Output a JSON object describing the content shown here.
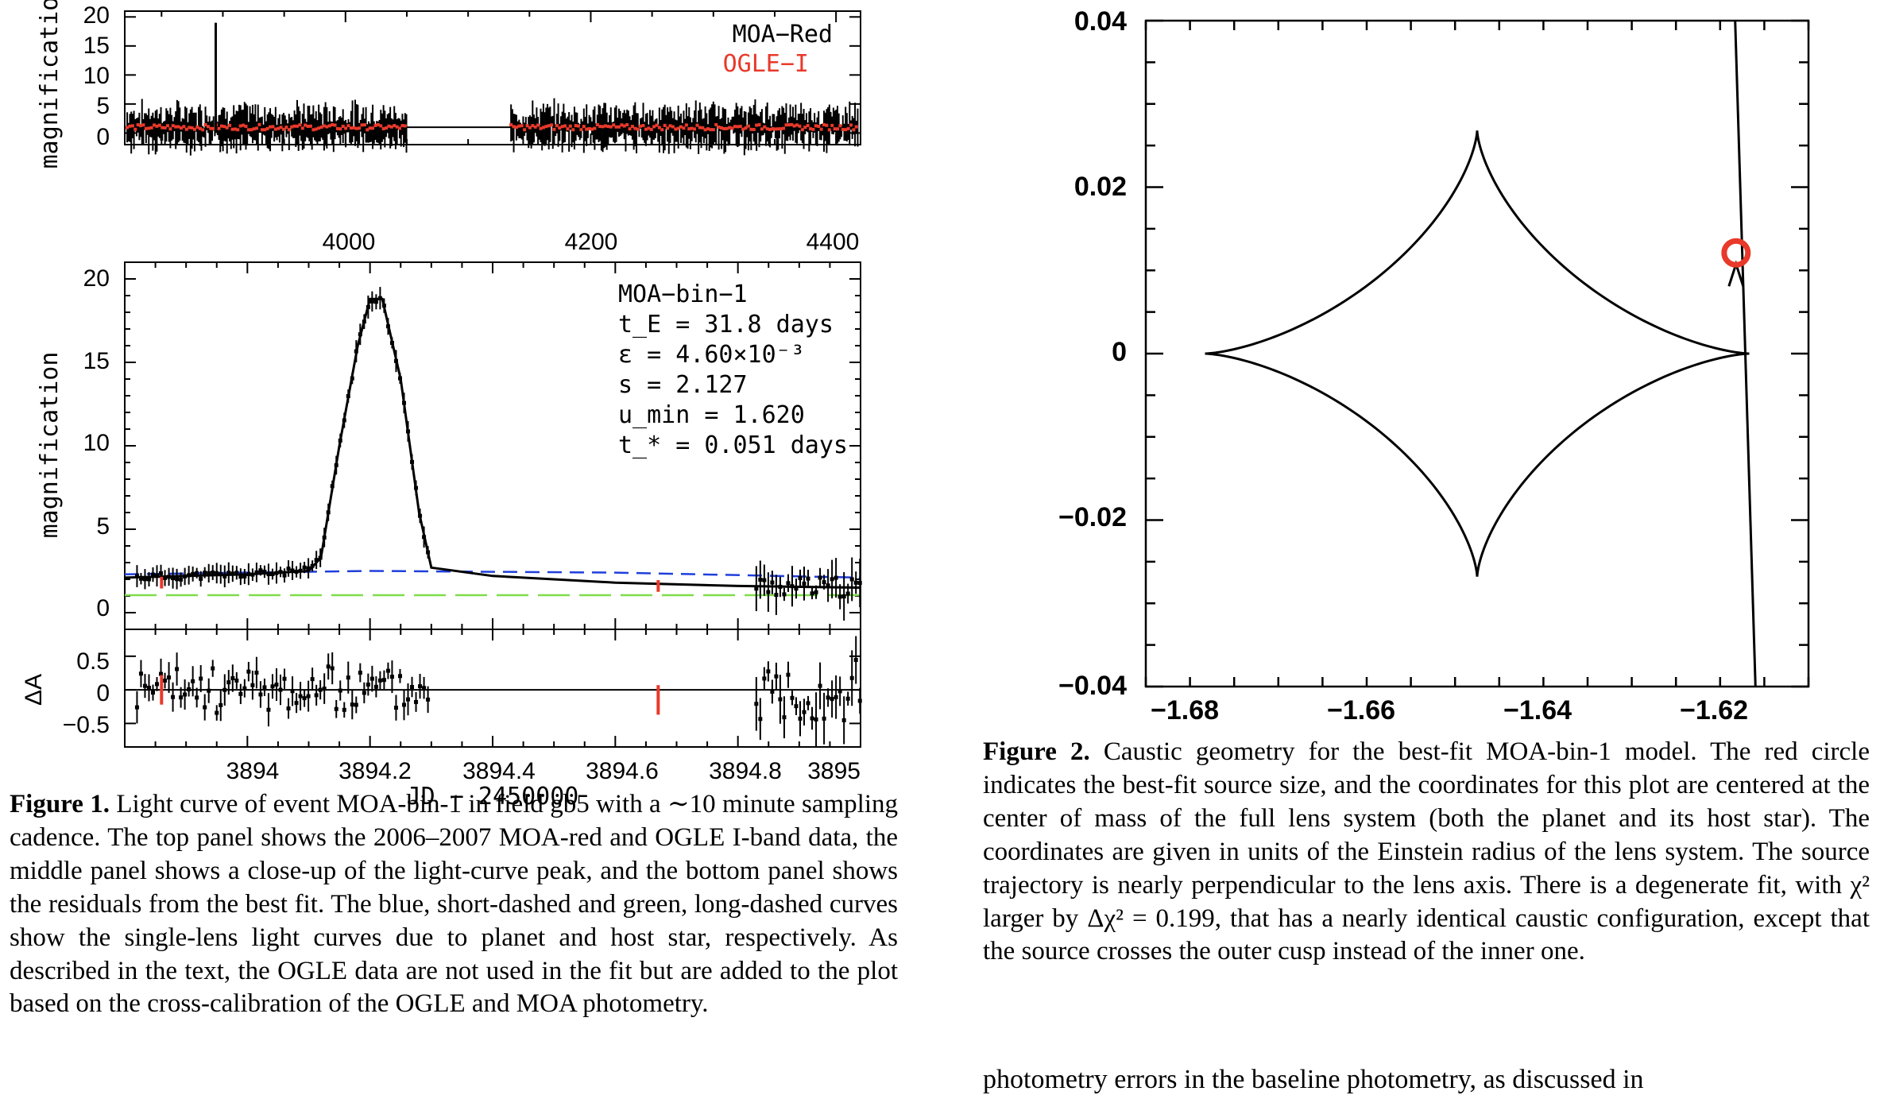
{
  "figure1": {
    "top": {
      "ylabel": "magnification",
      "yticks": [
        "0",
        "5",
        "10",
        "15",
        "20"
      ],
      "xticks": [
        "4000",
        "4200",
        "4400"
      ],
      "legend": [
        {
          "label": "MOA−Red",
          "color": "#000000"
        },
        {
          "label": "OGLE−I",
          "color": "#e8392a"
        }
      ]
    },
    "middle": {
      "ylabel": "magnification",
      "yticks": [
        "0",
        "5",
        "10",
        "15",
        "20"
      ],
      "annotation": [
        "MOA−bin−1",
        "t_E = 31.8 days",
        "ε = 4.60×10⁻³",
        "s = 2.127",
        "u_min = 1.620",
        "t_* = 0.051 days"
      ]
    },
    "bottom": {
      "ylabel": "ΔA",
      "yticks": [
        "0.5",
        "0",
        "−0.5"
      ],
      "xticks": [
        "3894",
        "3894.2",
        "3894.4",
        "3894.6",
        "3894.8",
        "3895"
      ],
      "xlabel": "JD − 2450000"
    }
  },
  "figure2": {
    "yticks": [
      "0.04",
      "0.02",
      "0",
      "−0.02",
      "−0.04"
    ],
    "xticks": [
      "−1.68",
      "−1.66",
      "−1.64",
      "−1.62"
    ]
  },
  "captions": {
    "fig1_label": "Figure 1.",
    "fig1_text": "Light curve of event MOA-bin-1 in field gb5 with a ∼10 minute sampling cadence. The top panel shows the 2006–2007 MOA-red and OGLE I-band data, the middle panel shows a close-up of the light-curve peak, and the bottom panel shows the residuals from the best fit. The blue, short-dashed and green, long-dashed curves show the single-lens light curves due to planet and host star, respectively. As described in the text, the OGLE data are not used in the fit but are added to the plot based on the cross-calibration of the OGLE and MOA photometry.",
    "fig2_label": "Figure 2.",
    "fig2_text": "Caustic geometry for the best-fit MOA-bin-1 model. The red circle indicates the best-fit source size, and the coordinates for this plot are centered at the center of mass of the full lens system (both the planet and its host star). The coordinates are given in units of the Einstein radius of the lens system. The source trajectory is nearly perpendicular to the lens axis. There is a degenerate fit, with χ² larger by Δχ² = 0.199, that has a nearly identical caustic configuration, except that the source crosses the outer cusp instead of the inner one.",
    "bottom_text": "photometry errors in the baseline photometry, as discussed in"
  },
  "chart_data": [
    {
      "type": "scatter",
      "xlim": [
        3820,
        4420
      ],
      "ylim": [
        -2,
        21
      ],
      "series": [
        {
          "name": "MOA−Red",
          "color": "#000000"
        },
        {
          "name": "OGLE−I",
          "color": "#e8392a"
        }
      ],
      "spike": {
        "x": 3894.2,
        "y": 19
      },
      "gap": [
        4050,
        4135
      ],
      "baseline": 1
    },
    {
      "type": "line",
      "xlim": [
        3893.8,
        3895
      ],
      "ylim": [
        -1,
        21
      ],
      "peak": {
        "x": 3894.2,
        "y": 19
      },
      "model_curve": [
        [
          3893.8,
          2.1
        ],
        [
          3894.0,
          2.3
        ],
        [
          3894.1,
          2.5
        ],
        [
          3894.12,
          3.3
        ],
        [
          3894.15,
          10
        ],
        [
          3894.18,
          16
        ],
        [
          3894.2,
          18.8
        ],
        [
          3894.22,
          18.8
        ],
        [
          3894.25,
          14
        ],
        [
          3894.28,
          6
        ],
        [
          3894.3,
          2.7
        ],
        [
          3894.4,
          2.2
        ],
        [
          3894.6,
          1.8
        ],
        [
          3894.8,
          1.6
        ],
        [
          3895.0,
          1.5
        ]
      ],
      "planet_curve_blue": [
        [
          3893.8,
          2.3
        ],
        [
          3894.2,
          2.5
        ],
        [
          3894.6,
          2.4
        ],
        [
          3895.0,
          2.1
        ]
      ],
      "host_curve_green": [
        [
          3893.8,
          1.05
        ],
        [
          3895.0,
          1.05
        ]
      ],
      "ogle_points": [
        [
          3893.86,
          1.8
        ],
        [
          3894.67,
          1.6
        ]
      ]
    },
    {
      "type": "scatter",
      "xlim": [
        3893.8,
        3895
      ],
      "ylim": [
        -0.85,
        0.9
      ],
      "ogle_points": [
        [
          3893.86,
          0
        ],
        [
          3894.67,
          -0.15
        ]
      ]
    },
    {
      "type": "line",
      "xlim": [
        -1.6875,
        -1.6125
      ],
      "ylim": [
        -0.04,
        0.04
      ],
      "caustic_cusps": [
        [
          -1.6808,
          0
        ],
        [
          -1.65,
          0.0268
        ],
        [
          -1.6192,
          0
        ],
        [
          -1.65,
          -0.0268
        ]
      ],
      "trajectory": [
        [
          -1.6208,
          0.04
        ],
        [
          -1.6185,
          -0.04
        ]
      ],
      "source": {
        "x": -1.6207,
        "y": 0.0121
      }
    }
  ]
}
